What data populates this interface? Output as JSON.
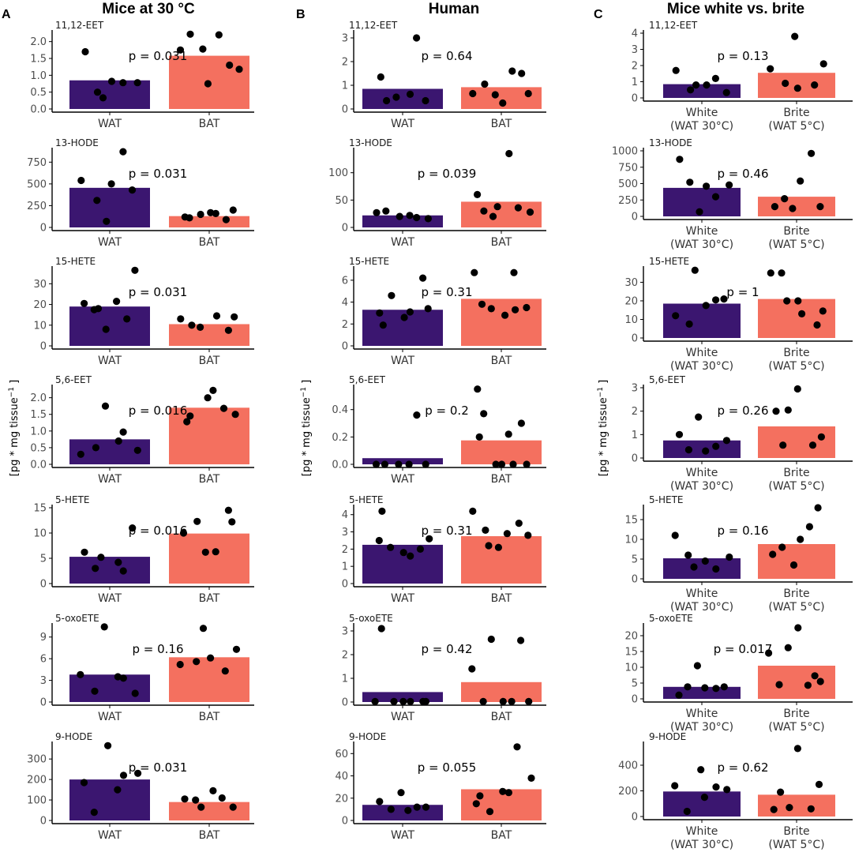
{
  "figure": {
    "columns": [
      {
        "letter": "A",
        "title": "Mice at 30 °C"
      },
      {
        "letter": "B",
        "title": "Human"
      },
      {
        "letter": "C",
        "title": "Mice white vs. brite"
      }
    ],
    "y_axis_label": "[pg * mg tissue",
    "y_axis_label_sup": "−1",
    "y_axis_label_end": " ]",
    "colors": {
      "group1": "#3b1670",
      "group2": "#f4705f",
      "points": "#000000",
      "axis": "#000000"
    }
  },
  "chart_data": [
    {
      "type": "bar",
      "title": "11,12-EET",
      "column": "A",
      "categories": [
        "WAT",
        "BAT"
      ],
      "values": [
        0.85,
        1.58
      ],
      "ylim": [
        0,
        2.25
      ],
      "ticks": [
        0,
        0.5,
        1,
        1.5,
        2
      ],
      "tick_labels": [
        "0.0",
        "0.5",
        "1.0",
        "1.5",
        "2.0"
      ],
      "p_label": "p = 0.031",
      "points": [
        [
          1.7,
          0.5,
          0.33,
          0.82,
          0.78,
          0.78
        ],
        [
          1.75,
          2.22,
          1.78,
          0.75,
          2.2,
          1.3,
          1.18
        ]
      ]
    },
    {
      "type": "bar",
      "title": "13-HODE",
      "column": "A",
      "categories": [
        "WAT",
        "BAT"
      ],
      "values": [
        455,
        130
      ],
      "ylim": [
        0,
        880
      ],
      "ticks": [
        0,
        250,
        500,
        750
      ],
      "tick_labels": [
        "0",
        "250",
        "500",
        "750"
      ],
      "p_label": "p = 0.031",
      "points": [
        [
          540,
          310,
          70,
          500,
          870,
          430
        ],
        [
          120,
          110,
          150,
          170,
          160,
          90,
          200
        ]
      ]
    },
    {
      "type": "bar",
      "title": "15-HETE",
      "column": "A",
      "categories": [
        "WAT",
        "BAT"
      ],
      "values": [
        19,
        10.5
      ],
      "ylim": [
        0,
        37
      ],
      "ticks": [
        0,
        10,
        20,
        30
      ],
      "tick_labels": [
        "0",
        "10",
        "20",
        "30"
      ],
      "p_label": "p = 0.031",
      "points": [
        [
          20.5,
          17.5,
          18,
          8,
          21.5,
          13,
          36.5
        ],
        [
          13,
          10,
          9,
          14.5,
          7.5,
          14
        ]
      ]
    },
    {
      "type": "bar",
      "title": "5,6-EET",
      "column": "A",
      "categories": [
        "WAT",
        "BAT"
      ],
      "values": [
        0.75,
        1.7
      ],
      "ylim": [
        0,
        2.3
      ],
      "ticks": [
        0,
        0.5,
        1,
        1.5,
        2
      ],
      "tick_labels": [
        "0.0",
        "0.5",
        "1.0",
        "1.5",
        "2.0"
      ],
      "p_label": "p = 0.016",
      "points": [
        [
          0.3,
          0.5,
          1.75,
          0.7,
          0.97,
          0.42
        ],
        [
          1.28,
          1.45,
          2.0,
          2.22,
          1.68,
          1.5
        ]
      ]
    },
    {
      "type": "bar",
      "title": "5-HETE",
      "column": "A",
      "categories": [
        "WAT",
        "BAT"
      ],
      "values": [
        5.3,
        9.9
      ],
      "ylim": [
        0,
        15
      ],
      "ticks": [
        0,
        5,
        10,
        15
      ],
      "tick_labels": [
        "0",
        "5",
        "10",
        "15"
      ],
      "p_label": "p = 0.016",
      "points": [
        [
          6.2,
          3,
          5.2,
          4.2,
          2.5,
          11
        ],
        [
          10,
          12.3,
          6.2,
          6.3,
          14.5,
          12.2
        ]
      ]
    },
    {
      "type": "bar",
      "title": "5-oxoETE",
      "column": "A",
      "categories": [
        "WAT",
        "BAT"
      ],
      "values": [
        3.8,
        6.2
      ],
      "ylim": [
        0,
        10.5
      ],
      "ticks": [
        0,
        3,
        6,
        9
      ],
      "tick_labels": [
        "0",
        "3",
        "6",
        "9"
      ],
      "p_label": "p = 0.16",
      "points": [
        [
          3.8,
          1.5,
          10.4,
          3.5,
          3.3,
          1.2
        ],
        [
          5.2,
          5.6,
          10.2,
          6.1,
          4.3,
          7.3
        ]
      ]
    },
    {
      "type": "bar",
      "title": "9-HODE",
      "column": "A",
      "categories": [
        "WAT",
        "BAT"
      ],
      "values": [
        200,
        90
      ],
      "ylim": [
        0,
        370
      ],
      "ticks": [
        0,
        100,
        200,
        300
      ],
      "tick_labels": [
        "0",
        "100",
        "200",
        "300"
      ],
      "p_label": "p = 0.031",
      "points": [
        [
          185,
          40,
          365,
          150,
          220,
          230
        ],
        [
          105,
          100,
          65,
          145,
          110,
          65
        ]
      ]
    },
    {
      "type": "bar",
      "title": "11,12-EET",
      "column": "B",
      "categories": [
        "WAT",
        "BAT"
      ],
      "values": [
        0.85,
        0.92
      ],
      "ylim": [
        0,
        3.2
      ],
      "ticks": [
        0,
        1,
        2,
        3
      ],
      "tick_labels": [
        "0",
        "1",
        "2",
        "3"
      ],
      "p_label": "p = 0.64",
      "points": [
        [
          1.35,
          0.35,
          0.5,
          0.62,
          3.0,
          0.35
        ],
        [
          0.65,
          1.05,
          0.6,
          0.25,
          1.6,
          1.5,
          0.65
        ]
      ]
    },
    {
      "type": "bar",
      "title": "13-HODE",
      "column": "B",
      "categories": [
        "WAT",
        "BAT"
      ],
      "values": [
        22,
        47
      ],
      "ylim": [
        0,
        140
      ],
      "ticks": [
        0,
        50,
        100
      ],
      "tick_labels": [
        "0",
        "50",
        "100"
      ],
      "p_label": "p = 0.039",
      "points": [
        [
          27,
          30,
          20,
          22,
          18,
          16
        ],
        [
          60,
          30,
          20,
          38,
          135,
          36,
          28
        ]
      ]
    },
    {
      "type": "bar",
      "title": "15-HETE",
      "column": "B",
      "categories": [
        "WAT",
        "BAT"
      ],
      "values": [
        3.3,
        4.3
      ],
      "ylim": [
        0,
        7
      ],
      "ticks": [
        0,
        2,
        4,
        6
      ],
      "tick_labels": [
        "0",
        "2",
        "4",
        "6"
      ],
      "p_label": "p = 0.31",
      "points": [
        [
          3.0,
          1.9,
          4.6,
          2.6,
          3.1,
          6.2,
          3.4
        ],
        [
          6.7,
          3.8,
          3.4,
          2.8,
          6.7,
          3.3,
          3.5
        ]
      ]
    },
    {
      "type": "bar",
      "title": "5,6-EET",
      "column": "B",
      "categories": [
        "WAT",
        "BAT"
      ],
      "values": [
        0.045,
        0.175
      ],
      "ylim": [
        0,
        0.56
      ],
      "ticks": [
        0,
        0.2,
        0.4
      ],
      "tick_labels": [
        "0.0",
        "0.2",
        "0.4"
      ],
      "p_label": "p = 0.2",
      "points": [
        [
          0.0,
          0.0,
          0.0,
          0.0,
          0.36,
          0.0
        ],
        [
          0.55,
          0.2,
          0.37,
          0.0,
          0.0,
          0.22,
          0.0,
          0.3,
          0.0
        ]
      ]
    },
    {
      "type": "bar",
      "title": "5-HETE",
      "column": "B",
      "categories": [
        "WAT",
        "BAT"
      ],
      "values": [
        2.25,
        2.75
      ],
      "ylim": [
        0,
        4.4
      ],
      "ticks": [
        0,
        1,
        2,
        3,
        4
      ],
      "tick_labels": [
        "0",
        "1",
        "2",
        "3",
        "4"
      ],
      "p_label": "p = 0.31",
      "points": [
        [
          2.5,
          4.2,
          2.1,
          1.8,
          1.6,
          2.0,
          2.6
        ],
        [
          4.2,
          3.1,
          2.2,
          2.1,
          2.9,
          3.5,
          2.8
        ]
      ]
    },
    {
      "type": "bar",
      "title": "5-oxoETE",
      "column": "B",
      "categories": [
        "WAT",
        "BAT"
      ],
      "values": [
        0.42,
        0.84
      ],
      "ylim": [
        0,
        3.2
      ],
      "ticks": [
        0,
        1,
        2,
        3
      ],
      "tick_labels": [
        "0",
        "1",
        "2",
        "3"
      ],
      "p_label": "p = 0.42",
      "points": [
        [
          0.02,
          3.1,
          0.02,
          0.02,
          0.02,
          0.02,
          0.02
        ],
        [
          1.4,
          0.02,
          2.65,
          0.02,
          0.02,
          2.6,
          0.02
        ]
      ]
    },
    {
      "type": "bar",
      "title": "9-HODE",
      "column": "B",
      "categories": [
        "WAT",
        "BAT"
      ],
      "values": [
        14,
        28
      ],
      "ylim": [
        0,
        68
      ],
      "ticks": [
        0,
        20,
        40,
        60
      ],
      "tick_labels": [
        "0",
        "20",
        "40",
        "60"
      ],
      "p_label": "p = 0.055",
      "points": [
        [
          17,
          10,
          25,
          9,
          12,
          12
        ],
        [
          15,
          22,
          8,
          26,
          25,
          66,
          38
        ]
      ]
    },
    {
      "type": "bar",
      "title": "11,12-EET",
      "column": "C",
      "categories": [
        "White\n(WAT 30°C)",
        "Brite\n(WAT 5°C)"
      ],
      "values": [
        0.85,
        1.55
      ],
      "ylim": [
        0,
        4
      ],
      "ticks": [
        0,
        1,
        2,
        3,
        4
      ],
      "tick_labels": [
        "0",
        "1",
        "2",
        "3",
        "4"
      ],
      "p_label": "p = 0.13",
      "points": [
        [
          1.7,
          0.5,
          0.8,
          0.8,
          1.2,
          0.33
        ],
        [
          1.8,
          0.9,
          3.8,
          0.6,
          0.8,
          2.1
        ]
      ]
    },
    {
      "type": "bar",
      "title": "13-HODE",
      "column": "C",
      "categories": [
        "White\n(WAT 30°C)",
        "Brite\n(WAT 5°C)"
      ],
      "values": [
        435,
        300
      ],
      "ylim": [
        0,
        1000
      ],
      "ticks": [
        0,
        250,
        500,
        750,
        1000
      ],
      "tick_labels": [
        "0",
        "250",
        "500",
        "750",
        "1000"
      ],
      "p_label": "p = 0.46",
      "points": [
        [
          870,
          520,
          70,
          460,
          300,
          480
        ],
        [
          150,
          270,
          120,
          540,
          960,
          150
        ]
      ]
    },
    {
      "type": "bar",
      "title": "15-HETE",
      "column": "C",
      "categories": [
        "White\n(WAT 30°C)",
        "Brite\n(WAT 5°C)"
      ],
      "values": [
        18.5,
        21
      ],
      "ylim": [
        0,
        37
      ],
      "ticks": [
        0,
        10,
        20,
        30
      ],
      "tick_labels": [
        "0",
        "10",
        "20",
        "30"
      ],
      "p_label": "p = 1",
      "points": [
        [
          12,
          7.5,
          36.5,
          17.5,
          20.5,
          21
        ],
        [
          35,
          35,
          20,
          20,
          13,
          7,
          14.5
        ]
      ]
    },
    {
      "type": "bar",
      "title": "5,6-EET",
      "column": "C",
      "categories": [
        "White\n(WAT 30°C)",
        "Brite\n(WAT 5°C)"
      ],
      "values": [
        0.75,
        1.35
      ],
      "ylim": [
        0,
        3
      ],
      "ticks": [
        0,
        1,
        2,
        3
      ],
      "tick_labels": [
        "0",
        "1",
        "2",
        "3"
      ],
      "p_label": "p = 0.26",
      "points": [
        [
          1.0,
          0.35,
          1.75,
          0.3,
          0.5,
          0.75
        ],
        [
          2.0,
          0.55,
          2.05,
          2.95,
          0.55,
          0.9
        ]
      ]
    },
    {
      "type": "bar",
      "title": "5-HETE",
      "column": "C",
      "categories": [
        "White\n(WAT 30°C)",
        "Brite\n(WAT 5°C)"
      ],
      "values": [
        5.2,
        8.8
      ],
      "ylim": [
        0,
        18
      ],
      "ticks": [
        0,
        5,
        10,
        15
      ],
      "tick_labels": [
        "0",
        "5",
        "10",
        "15"
      ],
      "p_label": "p = 0.16",
      "points": [
        [
          11,
          6,
          3,
          4.5,
          2.5,
          5.5
        ],
        [
          6.2,
          8,
          3.5,
          10,
          13.2,
          18
        ]
      ]
    },
    {
      "type": "bar",
      "title": "5-oxoETE",
      "column": "C",
      "categories": [
        "White\n(WAT 30°C)",
        "Brite\n(WAT 5°C)"
      ],
      "values": [
        3.8,
        10.5
      ],
      "ylim": [
        0,
        23
      ],
      "ticks": [
        0,
        5,
        10,
        15,
        20
      ],
      "tick_labels": [
        "0",
        "5",
        "10",
        "15",
        "20"
      ],
      "p_label": "p = 0.017",
      "points": [
        [
          1.2,
          3.8,
          10.5,
          3.5,
          3.3,
          3.8
        ],
        [
          14.5,
          4.5,
          16.2,
          22.5,
          4.3,
          7.3,
          5.5
        ]
      ]
    },
    {
      "type": "bar",
      "title": "9-HODE",
      "column": "C",
      "categories": [
        "White\n(WAT 30°C)",
        "Brite\n(WAT 5°C)"
      ],
      "values": [
        195,
        170
      ],
      "ylim": [
        0,
        560
      ],
      "ticks": [
        0,
        200,
        400
      ],
      "tick_labels": [
        "0",
        "200",
        "400"
      ],
      "p_label": "p = 0.62",
      "points": [
        [
          240,
          40,
          365,
          150,
          230,
          210
        ],
        [
          55,
          190,
          70,
          530,
          60,
          250
        ]
      ]
    }
  ]
}
